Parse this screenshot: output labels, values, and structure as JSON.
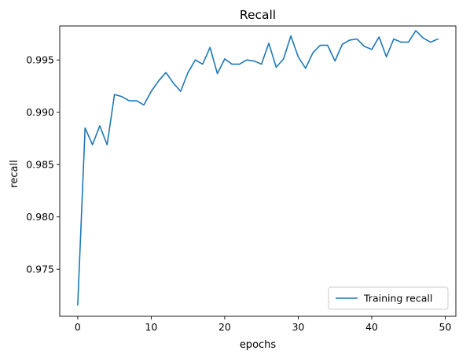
{
  "chart_data": {
    "type": "line",
    "title": "Recall",
    "xlabel": "epochs",
    "ylabel": "recall",
    "xlim": [
      -2.45,
      51.45
    ],
    "ylim": [
      0.9705,
      0.99825
    ],
    "xticks": [
      0,
      10,
      20,
      30,
      40,
      50
    ],
    "xtick_labels": [
      "0",
      "10",
      "20",
      "30",
      "40",
      "50"
    ],
    "yticks": [
      0.975,
      0.98,
      0.985,
      0.99,
      0.995
    ],
    "ytick_labels": [
      "0.975",
      "0.980",
      "0.985",
      "0.990",
      "0.995"
    ],
    "grid": false,
    "legend_position": "lower-right",
    "series": [
      {
        "name": "Training recall",
        "color": "#1f77b4",
        "x": [
          0,
          1,
          2,
          3,
          4,
          5,
          6,
          7,
          8,
          9,
          10,
          11,
          12,
          13,
          14,
          15,
          16,
          17,
          18,
          19,
          20,
          21,
          22,
          23,
          24,
          25,
          26,
          27,
          28,
          29,
          30,
          31,
          32,
          33,
          34,
          35,
          36,
          37,
          38,
          39,
          40,
          41,
          42,
          43,
          44,
          45,
          46,
          47,
          48,
          49
        ],
        "values": [
          0.9716,
          0.9885,
          0.9869,
          0.9887,
          0.9869,
          0.9917,
          0.9915,
          0.9911,
          0.9911,
          0.9907,
          0.992,
          0.993,
          0.9938,
          0.9928,
          0.992,
          0.9938,
          0.995,
          0.9946,
          0.9962,
          0.9937,
          0.9951,
          0.9946,
          0.9946,
          0.995,
          0.9949,
          0.9946,
          0.9966,
          0.9943,
          0.9951,
          0.9973,
          0.9953,
          0.9942,
          0.9957,
          0.9964,
          0.9964,
          0.9949,
          0.9965,
          0.9969,
          0.997,
          0.9963,
          0.996,
          0.9972,
          0.9953,
          0.997,
          0.9967,
          0.9967,
          0.9978,
          0.9971,
          0.9967,
          0.997
        ]
      }
    ]
  }
}
